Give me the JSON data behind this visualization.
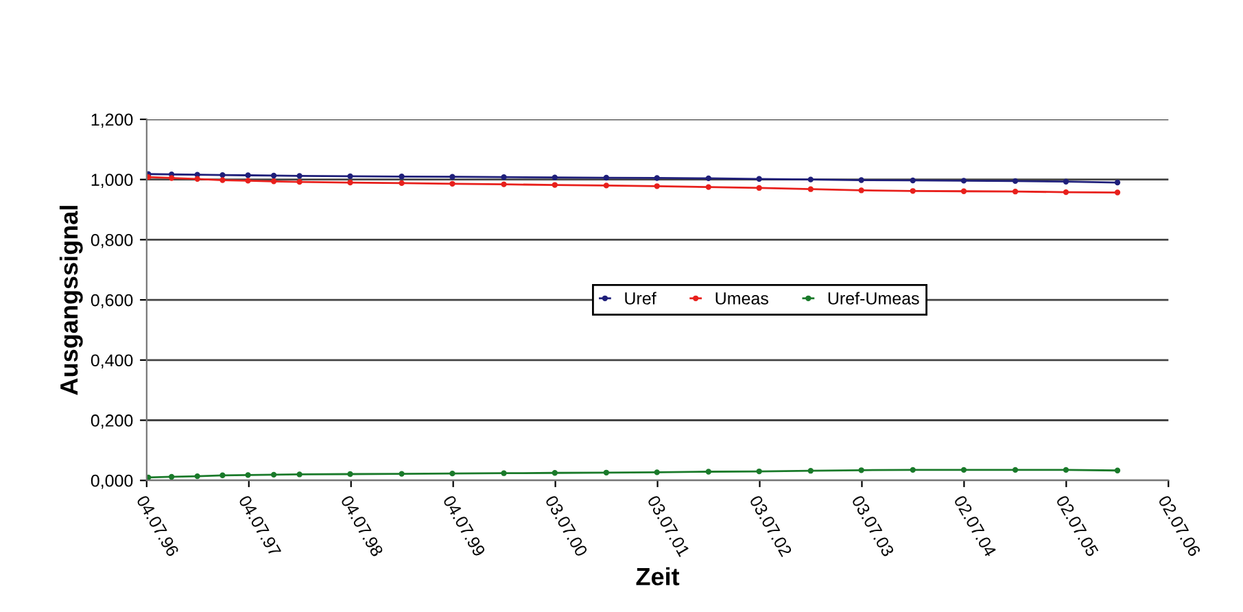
{
  "chart_data": {
    "type": "line",
    "xlabel": "Zeit",
    "ylabel": "Ausgangssignal",
    "x": [
      "1996-07-10",
      "1996-10-01",
      "1997-01-01",
      "1997-04-01",
      "1997-07-01",
      "1997-10-01",
      "1998-01-01",
      "1998-07-01",
      "1999-01-01",
      "1999-07-01",
      "2000-01-01",
      "2000-07-01",
      "2001-01-01",
      "2001-07-01",
      "2002-01-01",
      "2002-07-01",
      "2003-01-01",
      "2003-07-01",
      "2004-01-01",
      "2004-07-01",
      "2005-01-01",
      "2005-07-01",
      "2006-01-01"
    ],
    "series": [
      {
        "name": "Uref",
        "color": "#1f1f7a",
        "values": [
          1.018,
          1.017,
          1.016,
          1.015,
          1.014,
          1.013,
          1.012,
          1.011,
          1.01,
          1.009,
          1.008,
          1.007,
          1.006,
          1.005,
          1.004,
          1.002,
          1.0,
          0.998,
          0.997,
          0.996,
          0.995,
          0.993,
          0.99
        ]
      },
      {
        "name": "Umeas",
        "color": "#e8201c",
        "values": [
          1.008,
          1.005,
          1.002,
          0.998,
          0.996,
          0.994,
          0.992,
          0.99,
          0.988,
          0.986,
          0.984,
          0.982,
          0.98,
          0.978,
          0.975,
          0.972,
          0.968,
          0.964,
          0.962,
          0.961,
          0.96,
          0.958,
          0.957
        ]
      },
      {
        "name": "Uref-Umeas",
        "color": "#1a7a2a",
        "values": [
          0.01,
          0.012,
          0.014,
          0.017,
          0.018,
          0.019,
          0.02,
          0.021,
          0.022,
          0.023,
          0.024,
          0.025,
          0.026,
          0.027,
          0.029,
          0.03,
          0.032,
          0.034,
          0.035,
          0.035,
          0.035,
          0.035,
          0.033
        ]
      }
    ],
    "xlim": [
      "1996-07-04",
      "2006-07-02"
    ],
    "xticks": [
      {
        "value": "1996-07-04",
        "label": "04.07.96"
      },
      {
        "value": "1997-07-04",
        "label": "04.07.97"
      },
      {
        "value": "1998-07-04",
        "label": "04.07.98"
      },
      {
        "value": "1999-07-04",
        "label": "04.07.99"
      },
      {
        "value": "2000-07-03",
        "label": "03.07.00"
      },
      {
        "value": "2001-07-03",
        "label": "03.07.01"
      },
      {
        "value": "2002-07-03",
        "label": "03.07.02"
      },
      {
        "value": "2003-07-03",
        "label": "03.07.03"
      },
      {
        "value": "2004-07-02",
        "label": "02.07.04"
      },
      {
        "value": "2005-07-02",
        "label": "02.07.05"
      },
      {
        "value": "2006-07-02",
        "label": "02.07.06"
      }
    ],
    "ylim": [
      0,
      1.2
    ],
    "yticks": [
      {
        "value": 0,
        "label": "0,000"
      },
      {
        "value": 0.2,
        "label": "0,200"
      },
      {
        "value": 0.4,
        "label": "0,400"
      },
      {
        "value": 0.6,
        "label": "0,600"
      },
      {
        "value": 0.8,
        "label": "0,800"
      },
      {
        "value": 1.0,
        "label": "1,000"
      },
      {
        "value": 1.2,
        "label": "1,200"
      }
    ],
    "grid": "y",
    "legend": "center",
    "marker": "circle",
    "line_style": "solid"
  }
}
